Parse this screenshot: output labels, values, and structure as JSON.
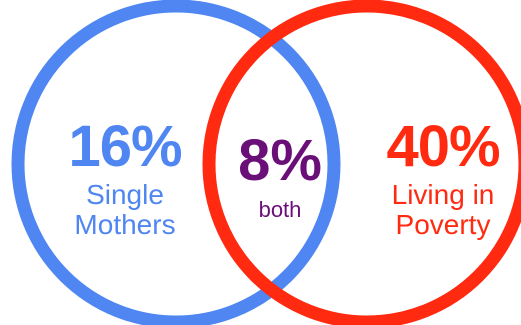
{
  "colors": {
    "left_circle": "#4f86f2",
    "right_circle": "#ff2a10",
    "overlap_text": "#6b0f78",
    "background": "#ffffff"
  },
  "left_set": {
    "percent": "16%",
    "label_line1": "Single",
    "label_line2": "Mothers"
  },
  "overlap": {
    "percent": "8%",
    "label": "both"
  },
  "right_set": {
    "percent": "40%",
    "label_line1": "Living in",
    "label_line2": "Poverty"
  }
}
